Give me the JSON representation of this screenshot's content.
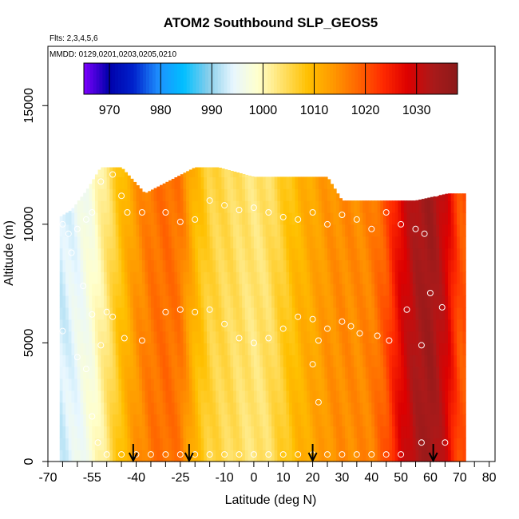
{
  "chart_data": {
    "type": "heatmap",
    "title": "ATOM2 Southbound SLP_GEOS5",
    "notes": {
      "flights": "Flts: 2,3,4,5,6",
      "dates": "MMDD: 0129,0201,0203,0205,0210"
    },
    "xlabel": "Latitude (deg N)",
    "ylabel": "Altitude (m)",
    "xlim": [
      -70,
      82
    ],
    "ylim": [
      0,
      17500
    ],
    "x_ticks": [
      -70,
      -65,
      -60,
      -55,
      -50,
      -45,
      -40,
      -35,
      -30,
      -25,
      -20,
      -15,
      -10,
      -5,
      0,
      5,
      10,
      15,
      20,
      25,
      30,
      35,
      40,
      45,
      50,
      55,
      60,
      65,
      70,
      75,
      80
    ],
    "x_tick_labels": [
      "-70",
      "",
      "",
      "-55",
      "",
      "",
      "-40",
      "",
      "",
      "-25",
      "",
      "",
      "-10",
      "",
      "0",
      "",
      "10",
      "",
      "20",
      "",
      "30",
      "",
      "40",
      "",
      "50",
      "",
      "60",
      "",
      "70",
      "",
      "80"
    ],
    "y_ticks": [
      0,
      5000,
      10000,
      15000
    ],
    "y_tick_labels": [
      "0",
      "5000",
      "10000",
      "15000"
    ],
    "colorbar": {
      "range": [
        965,
        1038
      ],
      "ticks": [
        970,
        980,
        990,
        1000,
        1010,
        1020,
        1030
      ],
      "colors": [
        "#7f00ff",
        "#0000aa",
        "#0022cc",
        "#1e90ff",
        "#00bfff",
        "#87ceeb",
        "#e8f7ff",
        "#ffffcc",
        "#ffe066",
        "#ffc000",
        "#ff9900",
        "#ff6600",
        "#ff2a00",
        "#dd0000",
        "#aa1a1a",
        "#8b1a1a"
      ]
    },
    "field": {
      "lat_profile": [
        [
          -65,
          993
        ],
        [
          -60,
          995
        ],
        [
          -55,
          998
        ],
        [
          -50,
          1003
        ],
        [
          -46,
          1008
        ],
        [
          -40,
          1014
        ],
        [
          -35,
          1017
        ],
        [
          -30,
          1018
        ],
        [
          -25,
          1017
        ],
        [
          -20,
          1010
        ],
        [
          -15,
          1006
        ],
        [
          -10,
          1005
        ],
        [
          -5,
          1004
        ],
        [
          0,
          1003
        ],
        [
          5,
          1004
        ],
        [
          10,
          1007
        ],
        [
          15,
          1010
        ],
        [
          20,
          1012
        ],
        [
          25,
          1014
        ],
        [
          30,
          1015
        ],
        [
          35,
          1015
        ],
        [
          40,
          1016
        ],
        [
          45,
          1020
        ],
        [
          50,
          1028
        ],
        [
          55,
          1033
        ],
        [
          60,
          1035
        ],
        [
          65,
          1030
        ],
        [
          70,
          1020
        ]
      ],
      "top_altitude_profile": [
        [
          -66,
          10300
        ],
        [
          -62,
          10600
        ],
        [
          -57,
          11400
        ],
        [
          -52,
          12400
        ],
        [
          -45,
          12400
        ],
        [
          -37,
          11300
        ],
        [
          -20,
          12400
        ],
        [
          -12,
          12400
        ],
        [
          0,
          12000
        ],
        [
          25,
          12000
        ],
        [
          30,
          11000
        ],
        [
          50,
          11000
        ],
        [
          55,
          11000
        ],
        [
          66,
          11300
        ],
        [
          70,
          11300
        ]
      ]
    },
    "flight_track_points": [
      [
        -65,
        10000
      ],
      [
        -63,
        9600
      ],
      [
        -60,
        9800
      ],
      [
        -57,
        10200
      ],
      [
        -55,
        10500
      ],
      [
        -52,
        11800
      ],
      [
        -48,
        12100
      ],
      [
        -45,
        11200
      ],
      [
        -43,
        10500
      ],
      [
        -38,
        10500
      ],
      [
        -30,
        10500
      ],
      [
        -25,
        10100
      ],
      [
        -20,
        10200
      ],
      [
        -15,
        11000
      ],
      [
        -10,
        10800
      ],
      [
        -5,
        10600
      ],
      [
        0,
        10700
      ],
      [
        5,
        10500
      ],
      [
        10,
        10300
      ],
      [
        15,
        10200
      ],
      [
        20,
        10500
      ],
      [
        25,
        10000
      ],
      [
        30,
        10400
      ],
      [
        35,
        10200
      ],
      [
        40,
        9800
      ],
      [
        45,
        10500
      ],
      [
        50,
        10000
      ],
      [
        55,
        9800
      ],
      [
        58,
        9600
      ],
      [
        62,
        11300
      ],
      [
        -62,
        8800
      ],
      [
        -58,
        7400
      ],
      [
        -55,
        6200
      ],
      [
        -52,
        4900
      ],
      [
        -50,
        6300
      ],
      [
        -48,
        6100
      ],
      [
        -44,
        5200
      ],
      [
        -38,
        5100
      ],
      [
        -30,
        6300
      ],
      [
        -25,
        6400
      ],
      [
        -20,
        6300
      ],
      [
        -15,
        6400
      ],
      [
        -10,
        5800
      ],
      [
        -5,
        5200
      ],
      [
        0,
        5000
      ],
      [
        5,
        5200
      ],
      [
        10,
        5600
      ],
      [
        15,
        6100
      ],
      [
        20,
        6000
      ],
      [
        22,
        5100
      ],
      [
        25,
        5600
      ],
      [
        30,
        5900
      ],
      [
        33,
        5700
      ],
      [
        36,
        5400
      ],
      [
        42,
        5300
      ],
      [
        46,
        5100
      ],
      [
        52,
        6400
      ],
      [
        57,
        4900
      ],
      [
        60,
        7100
      ],
      [
        64,
        6500
      ],
      [
        -65,
        5500
      ],
      [
        -60,
        4400
      ],
      [
        -57,
        3900
      ],
      [
        -55,
        1900
      ],
      [
        -53,
        800
      ],
      [
        -50,
        300
      ],
      [
        -45,
        300
      ],
      [
        -40,
        300
      ],
      [
        -35,
        300
      ],
      [
        -30,
        300
      ],
      [
        -25,
        300
      ],
      [
        -20,
        300
      ],
      [
        -15,
        300
      ],
      [
        -10,
        300
      ],
      [
        -5,
        300
      ],
      [
        0,
        300
      ],
      [
        5,
        300
      ],
      [
        10,
        300
      ],
      [
        15,
        300
      ],
      [
        20,
        300
      ],
      [
        25,
        300
      ],
      [
        30,
        300
      ],
      [
        35,
        300
      ],
      [
        40,
        300
      ],
      [
        45,
        300
      ],
      [
        50,
        300
      ],
      [
        57,
        800
      ],
      [
        65,
        800
      ],
      [
        20,
        4100
      ],
      [
        22,
        2500
      ]
    ],
    "arrow_latitudes": [
      -41,
      -22,
      20,
      61
    ]
  }
}
